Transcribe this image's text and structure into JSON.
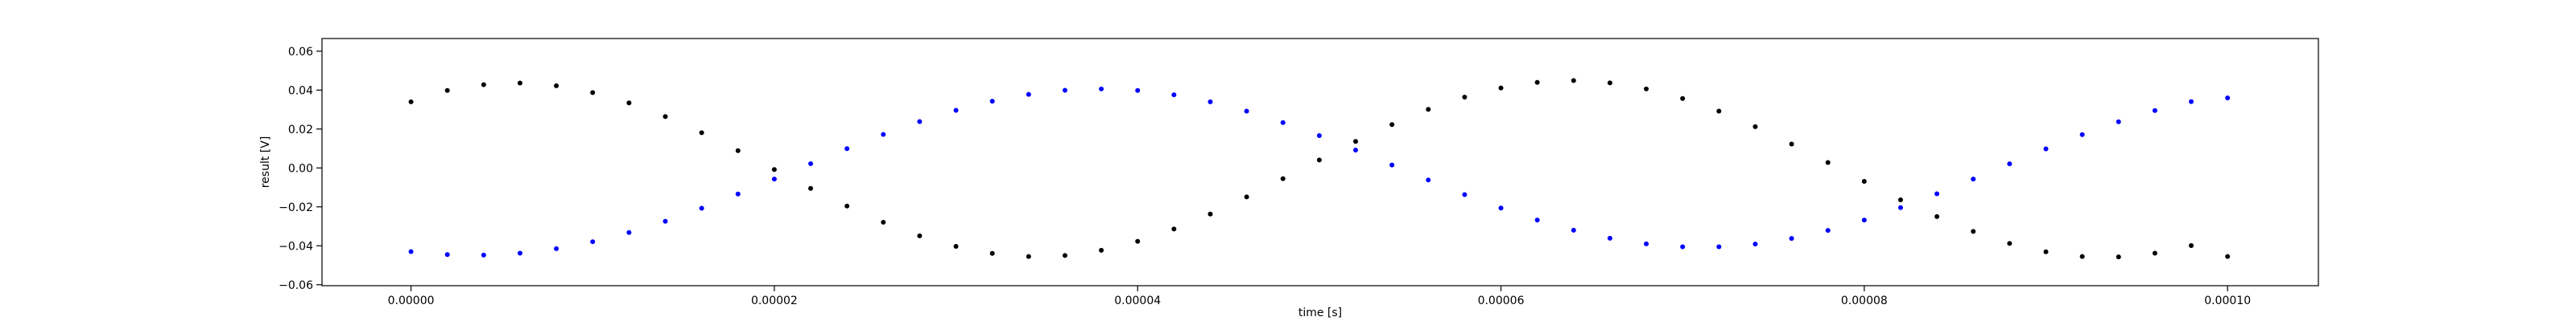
{
  "chart_data": {
    "type": "scatter",
    "title": "",
    "xlabel": "time [s]",
    "ylabel": "result [V]",
    "xlim": [
      -4.9e-06,
      0.000105
    ],
    "ylim": [
      -0.0605,
      0.0665
    ],
    "grid": false,
    "x_ticks": [
      {
        "value": 0.0,
        "label": "0.00000"
      },
      {
        "value": 2e-05,
        "label": "0.00002"
      },
      {
        "value": 4e-05,
        "label": "0.00004"
      },
      {
        "value": 6e-05,
        "label": "0.00006"
      },
      {
        "value": 8e-05,
        "label": "0.00008"
      },
      {
        "value": 0.0001,
        "label": "0.00010"
      }
    ],
    "y_ticks": [
      {
        "value": -0.06,
        "label": "−0.06"
      },
      {
        "value": -0.04,
        "label": "−0.04"
      },
      {
        "value": -0.02,
        "label": "−0.02"
      },
      {
        "value": 0.0,
        "label": "0.00"
      },
      {
        "value": 0.02,
        "label": "0.02"
      },
      {
        "value": 0.04,
        "label": "0.04"
      },
      {
        "value": 0.06,
        "label": "0.06"
      }
    ],
    "series": [
      {
        "color": "#000000",
        "marker": "dot",
        "x": [
          0.0,
          2e-06,
          4e-06,
          6e-06,
          8e-06,
          1e-05,
          1.2e-05,
          1.4e-05,
          1.6e-05,
          1.8e-05,
          2e-05,
          2.2e-05,
          2.4e-05,
          2.6e-05,
          2.8e-05,
          3e-05,
          3.2e-05,
          3.4e-05,
          3.6e-05,
          3.8e-05,
          4e-05,
          4.2e-05,
          4.4e-05,
          4.6e-05,
          4.8e-05,
          5e-05,
          5.2e-05,
          5.4e-05,
          5.6e-05,
          5.8e-05,
          6e-05,
          6.2e-05,
          6.4e-05,
          6.6e-05,
          6.8e-05,
          7e-05,
          7.2e-05,
          7.4e-05,
          7.6e-05,
          7.8e-05,
          8e-05,
          8.2e-05,
          8.4e-05,
          8.6e-05,
          8.8e-05,
          9e-05,
          9.2e-05,
          9.4e-05,
          9.6e-05,
          9.8e-05,
          0.0001
        ],
        "y": [
          0.034,
          0.0398,
          0.0428,
          0.0436,
          0.0422,
          0.0387,
          0.0334,
          0.0264,
          0.0181,
          0.0089,
          -0.0008,
          -0.0105,
          -0.0196,
          -0.0279,
          -0.0349,
          -0.0403,
          -0.0439,
          -0.0455,
          -0.045,
          -0.0423,
          -0.0377,
          -0.0314,
          -0.0237,
          -0.0149,
          -0.0055,
          0.0041,
          0.0136,
          0.0223,
          0.0301,
          0.0364,
          0.0411,
          0.044,
          0.0449,
          0.0437,
          0.0406,
          0.0357,
          0.0292,
          0.0212,
          0.0123,
          0.0028,
          -0.0069,
          -0.0164,
          -0.025,
          -0.0326,
          -0.0388,
          -0.0431,
          -0.0455,
          -0.0457,
          -0.0438,
          -0.0399,
          -0.0455
        ]
      },
      {
        "color": "#0000ff",
        "marker": "dot",
        "x": [
          0.0,
          2e-06,
          4e-06,
          6e-06,
          8e-06,
          1e-05,
          1.2e-05,
          1.4e-05,
          1.6e-05,
          1.8e-05,
          2e-05,
          2.2e-05,
          2.4e-05,
          2.6e-05,
          2.8e-05,
          3e-05,
          3.2e-05,
          3.4e-05,
          3.6e-05,
          3.8e-05,
          4e-05,
          4.2e-05,
          4.4e-05,
          4.6e-05,
          4.8e-05,
          5e-05,
          5.2e-05,
          5.4e-05,
          5.6e-05,
          5.8e-05,
          6e-05,
          6.2e-05,
          6.4e-05,
          6.6e-05,
          6.8e-05,
          7e-05,
          7.2e-05,
          7.4e-05,
          7.6e-05,
          7.8e-05,
          8e-05,
          8.2e-05,
          8.4e-05,
          8.6e-05,
          8.8e-05,
          9e-05,
          9.2e-05,
          9.4e-05,
          9.6e-05,
          9.8e-05,
          0.0001
        ],
        "y": [
          -0.043,
          -0.0445,
          -0.0448,
          -0.0438,
          -0.0415,
          -0.0379,
          -0.0332,
          -0.0274,
          -0.0207,
          -0.0134,
          -0.0057,
          0.0022,
          0.0099,
          0.0172,
          0.0238,
          0.0296,
          0.0343,
          0.0378,
          0.0399,
          0.0406,
          0.0398,
          0.0376,
          0.034,
          0.0292,
          0.0233,
          0.0166,
          0.0092,
          0.0015,
          -0.0062,
          -0.0137,
          -0.0206,
          -0.0268,
          -0.032,
          -0.0361,
          -0.039,
          -0.0405,
          -0.0405,
          -0.0391,
          -0.0362,
          -0.0321,
          -0.0268,
          -0.0204,
          -0.0133,
          -0.0057,
          0.0021,
          0.0098,
          0.0171,
          0.0237,
          0.0295,
          0.0341,
          0.036
        ]
      }
    ]
  }
}
